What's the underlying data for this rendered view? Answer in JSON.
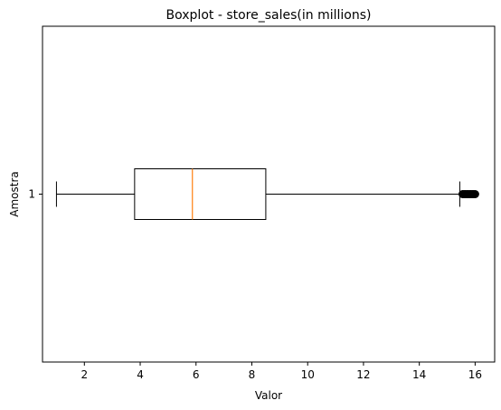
{
  "chart_data": {
    "type": "boxplot",
    "orientation": "horizontal",
    "title": "Boxplot - store_sales(in millions)",
    "xlabel": "Valor",
    "ylabel": "Amostra",
    "xlim": [
      0.5,
      16.7
    ],
    "x_ticks": [
      2,
      4,
      6,
      8,
      10,
      12,
      14,
      16
    ],
    "x_tick_labels": [
      "2",
      "4",
      "6",
      "8",
      "10",
      "12",
      "14",
      "16"
    ],
    "y_tick_labels": [
      "1"
    ],
    "grid": false,
    "series": [
      {
        "category": "1",
        "whisker_low": 1.0,
        "q1": 3.8,
        "median": 5.87,
        "q3": 8.5,
        "whisker_high": 15.45,
        "outliers": [
          15.55,
          15.6,
          15.65,
          15.7,
          15.75,
          15.8,
          15.85,
          15.9,
          15.95,
          16.0
        ]
      }
    ],
    "colors": {
      "median": "#ff7f0e",
      "box": "#000000",
      "outlier": "#000000"
    }
  }
}
